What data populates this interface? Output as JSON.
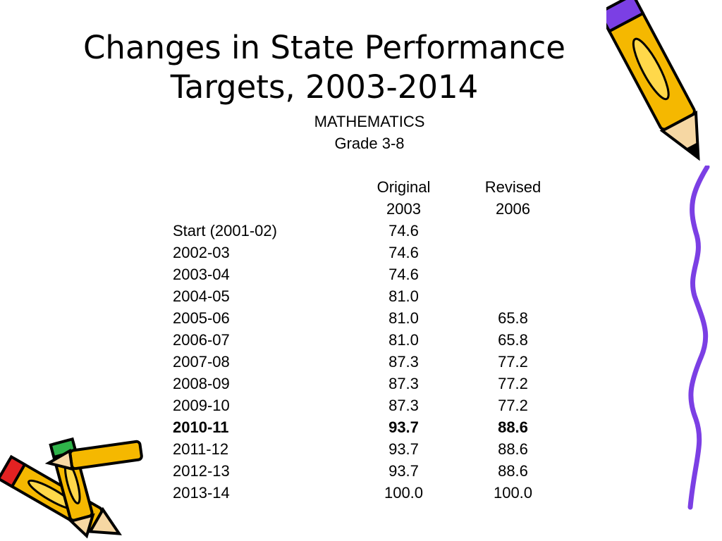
{
  "slide": {
    "title_line1": "Changes in State Performance",
    "title_line2": "Targets, 2003-2014",
    "subject": "MATHEMATICS",
    "grade": "Grade 3-8"
  },
  "table": {
    "headers": {
      "original_line1": "Original",
      "original_line2": "2003",
      "revised_line1": "Revised",
      "revised_line2": "2006"
    },
    "rows": [
      {
        "year": "Start (2001-02)",
        "original": "74.6",
        "revised": ""
      },
      {
        "year": "2002-03",
        "original": "74.6",
        "revised": ""
      },
      {
        "year": "2003-04",
        "original": "74.6",
        "revised": ""
      },
      {
        "year": "2004-05",
        "original": "81.0",
        "revised": ""
      },
      {
        "year": "2005-06",
        "original": "81.0",
        "revised": "65.8"
      },
      {
        "year": "2006-07",
        "original": "81.0",
        "revised": "65.8"
      },
      {
        "year": "2007-08",
        "original": "87.3",
        "revised": "77.2"
      },
      {
        "year": "2008-09",
        "original": "87.3",
        "revised": "77.2"
      },
      {
        "year": "2009-10",
        "original": "87.3",
        "revised": "77.2"
      },
      {
        "year": "2010-11",
        "original": "93.7",
        "revised": "88.6",
        "bold": true
      },
      {
        "year": "2011-12",
        "original": "93.7",
        "revised": "88.6"
      },
      {
        "year": "2012-13",
        "original": "93.7",
        "revised": "88.6"
      },
      {
        "year": "2013-14",
        "original": "100.0",
        "revised": "100.0"
      }
    ]
  },
  "decor": {
    "pencil_icon": "pencil-icon",
    "squiggle_color": "#7b3fe4",
    "pencil_body_color": "#f5b800"
  }
}
